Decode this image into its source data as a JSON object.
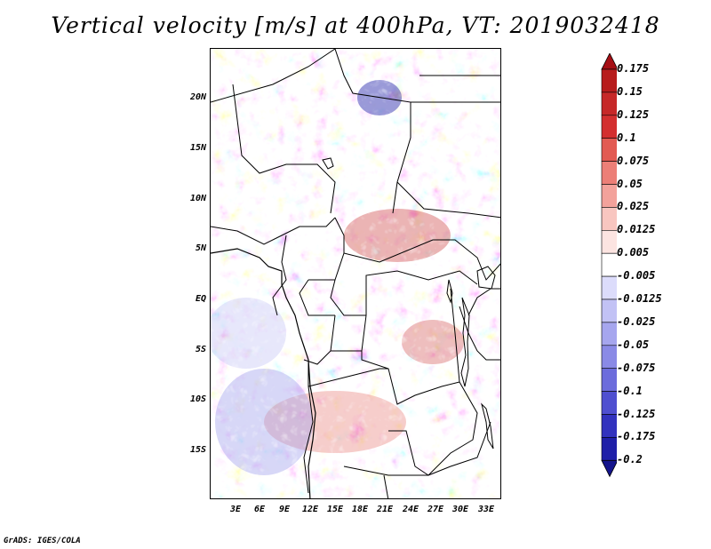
{
  "title": "Vertical velocity [m/s] at 400hPa, VT: 2019032418",
  "credit": "GrADS: IGES/COLA",
  "map": {
    "lat_labels": [
      "20N",
      "15N",
      "10N",
      "5N",
      "EQ",
      "5S",
      "10S",
      "15S"
    ],
    "lon_labels": [
      "3E",
      "6E",
      "9E",
      "12E",
      "15E",
      "18E",
      "21E",
      "24E",
      "27E",
      "30E",
      "33E"
    ]
  },
  "colorbar": {
    "labels": [
      "0.175",
      "0.15",
      "0.125",
      "0.1",
      "0.075",
      "0.05",
      "0.025",
      "0.0125",
      "0.005",
      "-0.005",
      "-0.0125",
      "-0.025",
      "-0.05",
      "-0.075",
      "-0.1",
      "-0.125",
      "-0.175",
      "-0.2"
    ],
    "colors": [
      "#a50f15",
      "#b71c1c",
      "#c62828",
      "#d32f2f",
      "#e25a52",
      "#ec7f77",
      "#f3a29b",
      "#f8c6c0",
      "#fce4e1",
      "#ffffff",
      "#dcdcfb",
      "#c2c2f5",
      "#a6a6ee",
      "#8a8ae6",
      "#6c6cdc",
      "#4f4fd0",
      "#3232be",
      "#1f1fa8",
      "#14148c"
    ]
  }
}
